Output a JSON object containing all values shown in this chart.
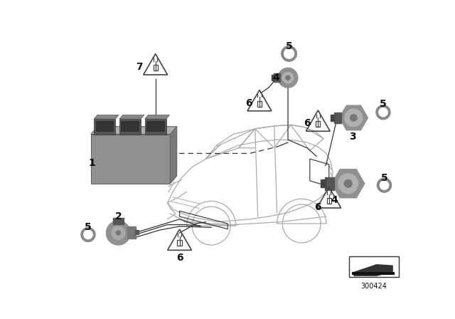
{
  "bg_color": "#ffffff",
  "part_number": "300424",
  "fig_width": 6.4,
  "fig_height": 4.48,
  "car_edge_color": "#aaaaaa",
  "part_gray": "#909090",
  "part_dark": "#555555",
  "part_mid": "#777777",
  "line_color": "#333333",
  "label_color": "#111111"
}
